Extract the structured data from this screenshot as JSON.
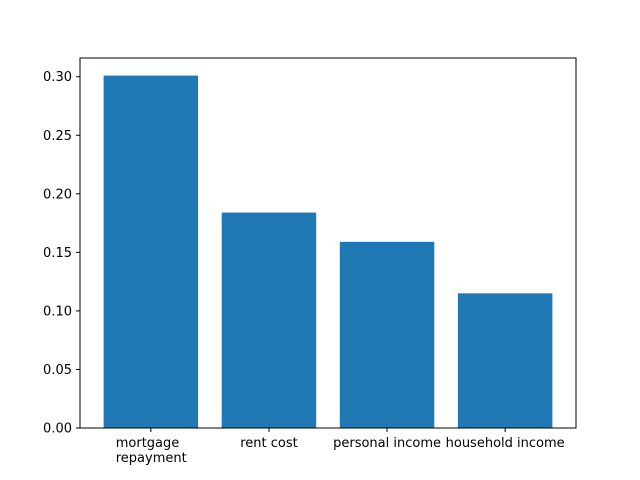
{
  "chart_data": {
    "type": "bar",
    "categories": [
      "mortgage\nrepayment",
      "rent cost",
      "personal income",
      "household income"
    ],
    "values": [
      0.301,
      0.184,
      0.159,
      0.115
    ],
    "title": "",
    "xlabel": "",
    "ylabel": "",
    "ylim": [
      0,
      0.316
    ],
    "yticks": [
      "0.00",
      "0.05",
      "0.10",
      "0.15",
      "0.20",
      "0.25",
      "0.30"
    ],
    "grid": false,
    "bar_color": "#1f77b4"
  }
}
